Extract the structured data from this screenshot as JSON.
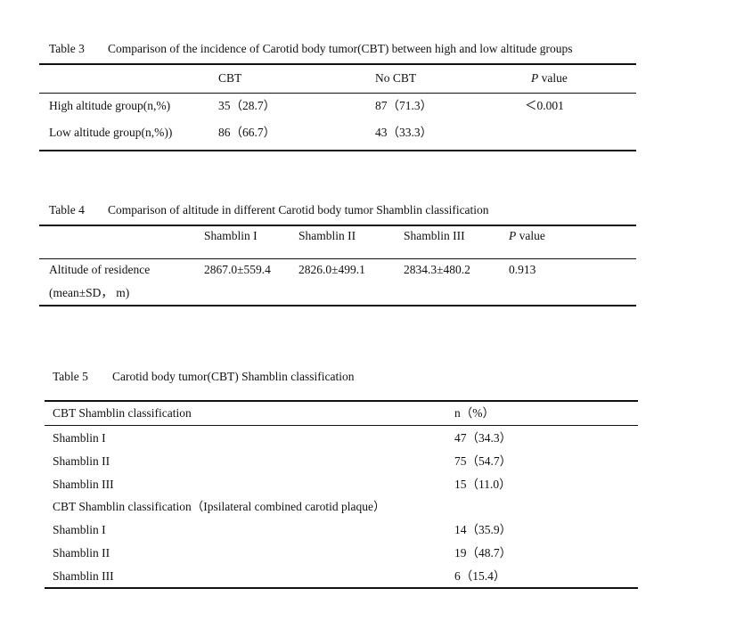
{
  "table3": {
    "label": "Table 3",
    "title": "Comparison of the incidence of Carotid body tumor(CBT) between high and low altitude groups",
    "headers": [
      "CBT",
      "No CBT",
      "P",
      " value"
    ],
    "rows": [
      [
        "High altitude group(n,%)",
        "35（28.7）",
        "87（71.3）",
        "＜0.001"
      ],
      [
        "Low altitude group(n,%))",
        "86（66.7）",
        "43（33.3）",
        ""
      ]
    ]
  },
  "table4": {
    "label": "Table 4",
    "title": "Comparison of altitude in different Carotid body tumor Shamblin classification",
    "headers": [
      "Shamblin I",
      "Shamblin II",
      "Shamblin III",
      "P",
      " value"
    ],
    "row": {
      "label1": "Altitude of residence",
      "label2": "(mean±SD， m)",
      "values": [
        "2867.0±559.4",
        "2826.0±499.1",
        "2834.3±480.2",
        "0.913"
      ]
    }
  },
  "table5": {
    "label": "Table 5",
    "title": "Carotid body tumor(CBT) Shamblin classification",
    "headers": [
      "CBT Shamblin classification",
      "n（%）"
    ],
    "rows": [
      [
        "Shamblin I",
        "47（34.3）"
      ],
      [
        "Shamblin II",
        "75（54.7）"
      ],
      [
        "Shamblin III",
        "15（11.0）"
      ],
      [
        "CBT Shamblin classification（Ipsilateral combined carotid plaque）",
        ""
      ],
      [
        "Shamblin I",
        "14（35.9）"
      ],
      [
        "Shamblin II",
        "19（48.7）"
      ],
      [
        "Shamblin III",
        "6（15.4）"
      ]
    ]
  }
}
